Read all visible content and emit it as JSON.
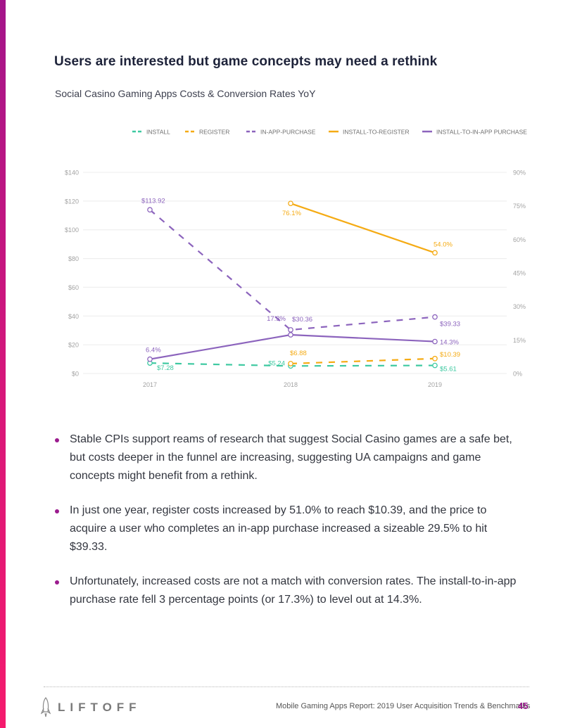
{
  "page": {
    "title": "Users are interested but game concepts may need a rethink",
    "subtitle": "Social Casino Gaming Apps Costs & Conversion Rates YoY"
  },
  "chart_data": {
    "type": "line",
    "title": "Social Casino Gaming Apps Costs & Conversion Rates YoY",
    "categories": [
      "2017",
      "2018",
      "2019"
    ],
    "y_left": {
      "ticks": [
        0,
        20,
        40,
        60,
        80,
        100,
        120,
        140
      ],
      "tick_labels": [
        "$0",
        "$20",
        "$40",
        "$60",
        "$80",
        "$100",
        "$120",
        "$140"
      ],
      "ylim": [
        0,
        140
      ]
    },
    "y_right": {
      "ticks": [
        0,
        15,
        30,
        45,
        60,
        75,
        90
      ],
      "tick_labels": [
        "0%",
        "15%",
        "30%",
        "45%",
        "60%",
        "75%",
        "90%"
      ],
      "ylim": [
        0,
        90
      ]
    },
    "legend_position": "top",
    "series": [
      {
        "name": "INSTALL",
        "axis": "left",
        "dashed": true,
        "color": "#3ec9a1",
        "values": [
          7.28,
          5.24,
          5.61
        ],
        "labels": [
          "$7.28",
          "$5.24",
          "$5.61"
        ]
      },
      {
        "name": "REGISTER",
        "axis": "left",
        "dashed": true,
        "color": "#f5ab14",
        "values": [
          null,
          6.88,
          10.39
        ],
        "labels": [
          null,
          "$6.88",
          "$10.39"
        ]
      },
      {
        "name": "IN-APP-PURCHASE",
        "axis": "left",
        "dashed": true,
        "color": "#8c64bd",
        "values": [
          113.92,
          30.36,
          39.33
        ],
        "labels": [
          "$113.92",
          "$30.36",
          "$39.33"
        ]
      },
      {
        "name": "INSTALL-TO-REGISTER",
        "axis": "right",
        "dashed": false,
        "color": "#f5ab14",
        "values": [
          null,
          76.1,
          54.0
        ],
        "labels": [
          null,
          "76.1%",
          "54.0%"
        ]
      },
      {
        "name": "INSTALL-TO-IN-APP PURCHASE",
        "axis": "right",
        "dashed": false,
        "color": "#8c64bd",
        "values": [
          6.4,
          17.3,
          14.3
        ],
        "labels": [
          "6.4%",
          "17.3%",
          "14.3%"
        ]
      }
    ]
  },
  "bullets": [
    "Stable CPIs support reams of research that suggest Social Casino games are a safe bet, but costs deeper in the funnel are increasing, suggesting UA campaigns and game concepts might benefit from a rethink.",
    "In just one year, register costs increased by 51.0% to reach $10.39, and the price to acquire a user who completes an in-app purchase increased a sizeable 29.5% to hit $39.33.",
    "Unfortunately, increased costs are not a match with conversion rates. The install-to-in-app purchase rate fell 3 percentage points (or 17.3%) to level out at 14.3%."
  ],
  "footer": {
    "logo_text": "LIFTOFF",
    "caption": "Mobile Gaming Apps Report: 2019 User Acquisition Trends & Benchmarks",
    "page_number": "45"
  },
  "colors": {
    "accent": "#9b1b8e",
    "install": "#3ec9a1",
    "register": "#f5ab14",
    "purchase": "#8c64bd"
  }
}
